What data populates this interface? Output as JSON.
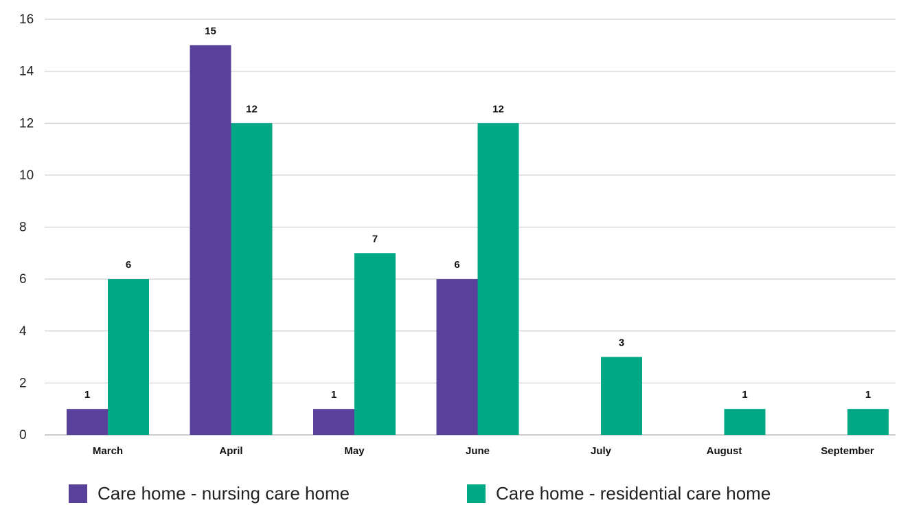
{
  "chart_data": {
    "type": "bar",
    "title": "",
    "xlabel": "",
    "ylabel": "",
    "categories": [
      "March",
      "April",
      "May",
      "June",
      "July",
      "August",
      "September"
    ],
    "series": [
      {
        "name": "Care home - nursing care home",
        "color": "#59409a",
        "values": [
          1,
          15,
          1,
          6,
          0,
          0,
          0
        ]
      },
      {
        "name": "Care home - residential care home",
        "color": "#00a886",
        "values": [
          6,
          12,
          7,
          12,
          3,
          1,
          1
        ]
      }
    ],
    "ylim": [
      0,
      16
    ],
    "yticks": [
      0,
      2,
      4,
      6,
      8,
      10,
      12,
      14,
      16
    ],
    "grid": true,
    "legend_position": "bottom"
  }
}
